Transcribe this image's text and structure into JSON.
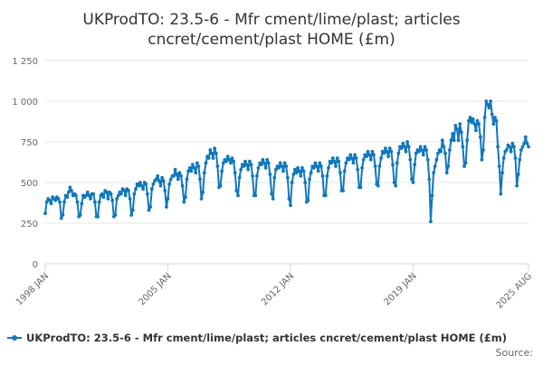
{
  "title_line1": "UKProdTO: 23.5-6 - Mfr cment/lime/plast; articles",
  "title_line2": "cncret/cement/plast HOME (£m)",
  "legend_label": "UKProdTO: 23.5-6 - Mfr cment/lime/plast; articles cncret/cement/plast HOME (£m)",
  "source_label": "Source:",
  "colors": {
    "series": "#1177bb",
    "grid": "#e6e6e6",
    "axis": "#ccd6eb"
  },
  "chart_data": {
    "type": "line",
    "title": "UKProdTO: 23.5-6 - Mfr cment/lime/plast; articles cncret/cement/plast HOME (£m)",
    "xlabel": "",
    "ylabel": "",
    "ylim": [
      0,
      1250
    ],
    "yticks": [
      0,
      250,
      500,
      750,
      1000,
      1250
    ],
    "ytick_labels": [
      "0",
      "250",
      "500",
      "750",
      "1 000",
      "1 250"
    ],
    "xlim": [
      "1998-01",
      "2025-08"
    ],
    "xticks": [
      "1998-01",
      "2005-01",
      "2012-01",
      "2019-01",
      "2025-08"
    ],
    "xtick_labels": [
      "1998 JAN",
      "2005 JAN",
      "2012 JAN",
      "2019 JAN",
      "2025 AUG"
    ],
    "grid": true,
    "legend": "bottom",
    "series": [
      {
        "name": "UKProdTO: 23.5-6 - Mfr cment/lime/plast; articles cncret/cement/plast HOME (£m)",
        "marker": "circle",
        "frequency": "monthly",
        "start": "1998-01",
        "values": [
          310,
          380,
          400,
          390,
          370,
          410,
          400,
          390,
          410,
          400,
          380,
          280,
          300,
          380,
          420,
          410,
          440,
          470,
          450,
          420,
          430,
          420,
          380,
          290,
          300,
          370,
          420,
          410,
          420,
          440,
          420,
          400,
          430,
          430,
          380,
          290,
          290,
          380,
          420,
          430,
          410,
          450,
          440,
          400,
          440,
          430,
          390,
          290,
          300,
          400,
          420,
          440,
          430,
          460,
          450,
          420,
          460,
          450,
          400,
          300,
          330,
          430,
          460,
          490,
          480,
          500,
          480,
          460,
          500,
          490,
          430,
          330,
          350,
          460,
          490,
          510,
          520,
          540,
          510,
          480,
          530,
          510,
          450,
          350,
          400,
          490,
          520,
          540,
          540,
          580,
          550,
          520,
          560,
          540,
          480,
          380,
          410,
          520,
          570,
          590,
          570,
          610,
          590,
          560,
          620,
          600,
          520,
          400,
          440,
          560,
          620,
          660,
          650,
          700,
          680,
          650,
          710,
          680,
          600,
          470,
          480,
          570,
          620,
          640,
          630,
          660,
          640,
          620,
          650,
          630,
          560,
          450,
          420,
          530,
          580,
          610,
          600,
          630,
          610,
          580,
          630,
          610,
          540,
          420,
          420,
          540,
          590,
          620,
          610,
          640,
          620,
          590,
          640,
          620,
          550,
          430,
          400,
          530,
          580,
          600,
          590,
          620,
          600,
          570,
          620,
          600,
          530,
          400,
          360,
          500,
          550,
          580,
          560,
          590,
          570,
          540,
          590,
          570,
          500,
          380,
          390,
          520,
          560,
          600,
          590,
          620,
          600,
          570,
          620,
          600,
          540,
          420,
          420,
          540,
          590,
          630,
          620,
          650,
          630,
          600,
          650,
          630,
          560,
          450,
          450,
          570,
          620,
          650,
          640,
          670,
          650,
          620,
          670,
          650,
          580,
          470,
          470,
          590,
          640,
          670,
          660,
          690,
          670,
          640,
          690,
          670,
          600,
          490,
          480,
          600,
          650,
          690,
          680,
          710,
          690,
          660,
          710,
          690,
          610,
          500,
          480,
          620,
          680,
          720,
          710,
          740,
          720,
          690,
          750,
          720,
          640,
          520,
          500,
          610,
          680,
          700,
          690,
          720,
          700,
          670,
          720,
          700,
          640,
          520,
          260,
          420,
          560,
          600,
          640,
          680,
          700,
          690,
          760,
          720,
          680,
          560,
          600,
          700,
          760,
          800,
          760,
          850,
          830,
          760,
          860,
          810,
          720,
          600,
          620,
          760,
          880,
          900,
          870,
          890,
          860,
          820,
          880,
          860,
          780,
          640,
          700,
          900,
          1000,
          980,
          960,
          1000,
          920,
          860,
          900,
          880,
          720,
          600,
          430,
          560,
          650,
          690,
          700,
          730,
          720,
          690,
          740,
          720,
          650,
          480,
          550,
          640,
          700,
          720,
          740,
          780,
          740,
          720
        ]
      }
    ]
  }
}
